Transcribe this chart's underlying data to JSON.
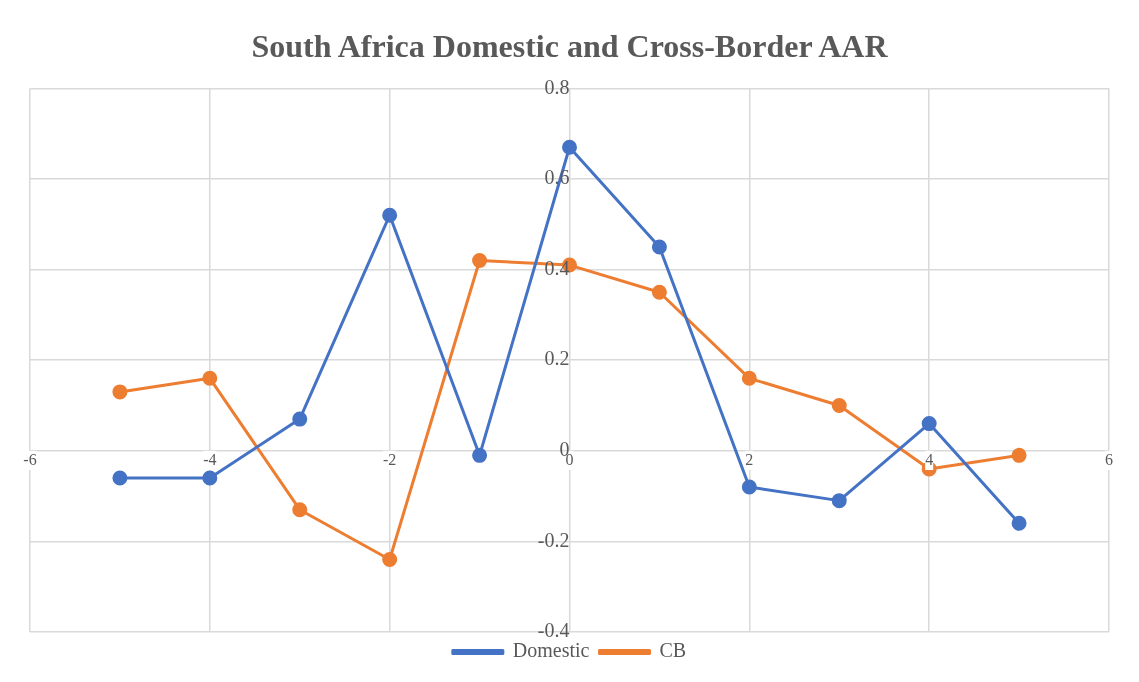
{
  "chart_data": {
    "type": "line",
    "title": "South Africa Domestic and Cross-Border AAR",
    "x": [
      -5,
      -4,
      -3,
      -2,
      -1,
      0,
      1,
      2,
      3,
      4,
      5
    ],
    "series": [
      {
        "name": "Domestic",
        "color": "#4472c4",
        "values": [
          -0.06,
          -0.06,
          0.07,
          0.52,
          -0.01,
          0.67,
          0.45,
          -0.08,
          -0.11,
          0.06,
          -0.16
        ]
      },
      {
        "name": "CB",
        "color": "#ed7d31",
        "values": [
          0.13,
          0.16,
          -0.13,
          -0.24,
          0.42,
          0.41,
          0.35,
          0.16,
          0.1,
          -0.04,
          -0.01
        ]
      }
    ],
    "xlim": [
      -6,
      6
    ],
    "xticks": [
      -6,
      -4,
      -2,
      0,
      2,
      4,
      6
    ],
    "ylim": [
      -0.4,
      0.8
    ],
    "yticks": [
      -0.4,
      -0.2,
      0,
      0.2,
      0.4,
      0.6,
      0.8
    ],
    "grid": true,
    "legend": "bottom",
    "marker": "circle",
    "line_style": "solid"
  }
}
